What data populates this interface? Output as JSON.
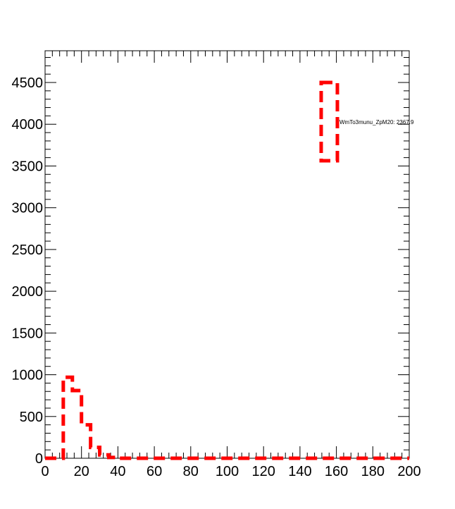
{
  "chart_data": {
    "type": "step-histogram",
    "title": "",
    "xlabel": "",
    "ylabel": "",
    "xlim": [
      0,
      200
    ],
    "ylim": [
      0,
      4880
    ],
    "x_ticks": [
      0,
      20,
      40,
      60,
      80,
      100,
      120,
      140,
      160,
      180,
      200
    ],
    "y_ticks": [
      0,
      500,
      1000,
      1500,
      2000,
      2500,
      3000,
      3500,
      4000,
      4500
    ],
    "x_tick_labels": [
      "0",
      "20",
      "40",
      "60",
      "80",
      "100",
      "120",
      "140",
      "160",
      "180",
      "200"
    ],
    "y_tick_labels": [
      "0",
      "500",
      "1000",
      "1500",
      "2000",
      "2500",
      "3000",
      "3500",
      "4000",
      "4500"
    ],
    "grid": false,
    "legend_position": "top-right",
    "series": [
      {
        "name": "WmTo3munu_ZpM20: 2367.9",
        "color": "#ff0000",
        "line_style": "dashed",
        "bin_width": 5,
        "bin_edges_start": 0,
        "values": [
          0,
          0,
          970,
          810,
          400,
          130,
          40,
          10,
          0,
          0,
          0,
          0,
          0,
          0,
          0,
          0,
          0,
          0,
          0,
          0,
          0,
          0,
          0,
          0,
          0,
          0,
          0,
          0,
          0,
          0,
          0,
          0,
          0,
          0,
          0,
          0,
          0,
          0,
          0,
          0
        ]
      }
    ]
  }
}
